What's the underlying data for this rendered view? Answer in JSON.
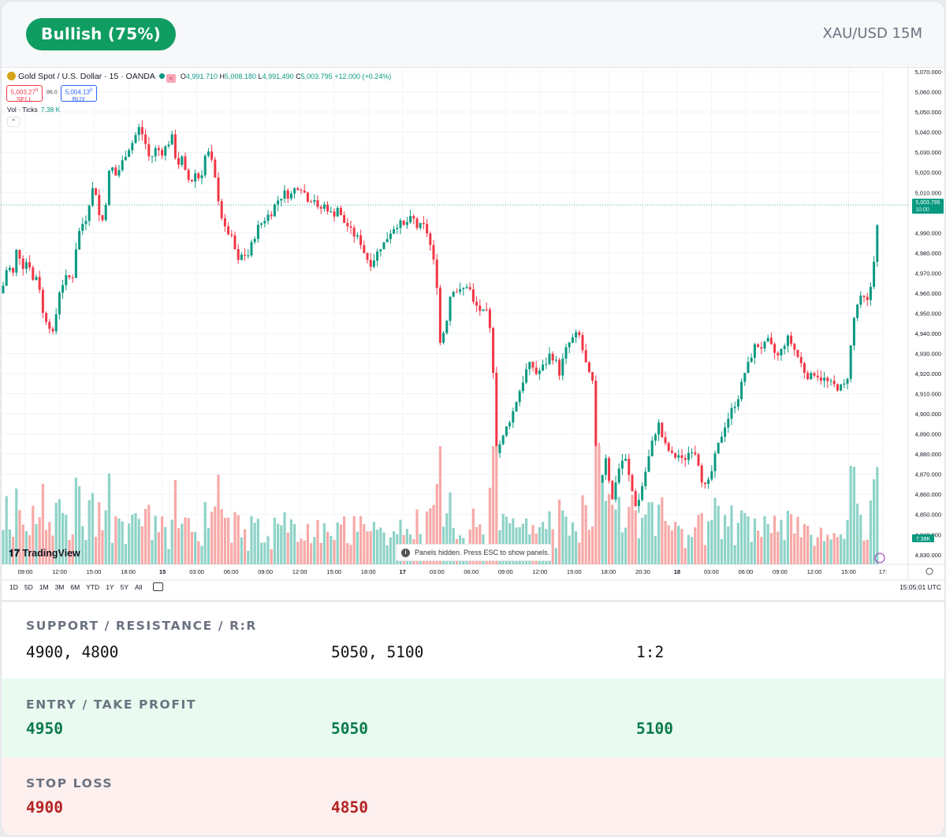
{
  "header": {
    "sentiment_badge": "Bullish (75%)",
    "pair_label": "XAU/USD 15M"
  },
  "chart": {
    "symbol_title": "Gold Spot / U.S. Dollar · 15 · OANDA",
    "ohlc": {
      "o": "4,991.710",
      "h": "5,008.180",
      "l": "4,991.490",
      "c": "5,003.795",
      "change": "+12.000 (+0.24%)"
    },
    "sell_price": "5,003.27",
    "sell_sup": "0",
    "sell_label": "SELL",
    "buy_price": "5,004.13",
    "buy_sup": "0",
    "buy_label": "BUY",
    "spread": "86.0",
    "volume_label": "Vol · Ticks",
    "volume_value": "7.38 K",
    "volume_badge": "7.38K",
    "price_badge": "5,003.795",
    "price_badge_time": "10:00",
    "brand": "TradingView",
    "panels_notice": "Panels hidden. Press ESC to show panels.",
    "timeframes": [
      "1D",
      "5D",
      "1M",
      "3M",
      "6M",
      "YTD",
      "1Y",
      "5Y",
      "All"
    ],
    "clock": "15:05:01 UTC",
    "colors": {
      "up": "#089981",
      "down": "#f23645",
      "up_vol": "#8fd3c8",
      "down_vol": "#f7a9a7"
    }
  },
  "chart_data": {
    "type": "candlestick",
    "title": "Gold Spot / U.S. Dollar · 15 · OANDA",
    "xlabel": "",
    "ylabel": "",
    "y_ticks": [
      5070,
      5060,
      5050,
      5040,
      5030,
      5020,
      5010,
      4990,
      4980,
      4970,
      4960,
      4950,
      4940,
      4930,
      4920,
      4910,
      4900,
      4890,
      4880,
      4870,
      4860,
      4850,
      4840,
      4830
    ],
    "y_tick_labels": [
      "5,070.000",
      "5,060.000",
      "5,050.000",
      "5,040.000",
      "5,030.000",
      "5,020.000",
      "5,010.000",
      "4,990.000",
      "4,980.000",
      "4,970.000",
      "4,960.000",
      "4,950.000",
      "4,940.000",
      "4,930.000",
      "4,920.000",
      "4,910.000",
      "4,900.000",
      "4,890.000",
      "4,880.000",
      "4,870.000",
      "4,860.000",
      "4,850.000",
      "4,840.000",
      "4,830.000"
    ],
    "ylim": [
      4826,
      5072
    ],
    "x_tick_labels": [
      "09:00",
      "12:00",
      "15:00",
      "18:00",
      "15",
      "03:00",
      "06:00",
      "09:00",
      "12:00",
      "15:00",
      "18:00",
      "17",
      "03:00",
      "06:00",
      "09:00",
      "12:00",
      "15:00",
      "18:00",
      "20:30",
      "18",
      "03:00",
      "06:00",
      "09:00",
      "12:00",
      "15:00",
      "17:"
    ],
    "bold_x_ticks": [
      "15",
      "17",
      "18"
    ],
    "price_path": [
      [
        0,
        4960
      ],
      [
        8,
        4975
      ],
      [
        14,
        4968
      ],
      [
        20,
        4984
      ],
      [
        26,
        4973
      ],
      [
        34,
        4977
      ],
      [
        40,
        4966
      ],
      [
        46,
        4970
      ],
      [
        52,
        4950
      ],
      [
        60,
        4945
      ],
      [
        66,
        4938
      ],
      [
        72,
        4960
      ],
      [
        80,
        4967
      ],
      [
        90,
        4968
      ],
      [
        96,
        4988
      ],
      [
        102,
        4994
      ],
      [
        108,
        4998
      ],
      [
        114,
        5012
      ],
      [
        120,
        5010
      ],
      [
        126,
        4992
      ],
      [
        132,
        5005
      ],
      [
        138,
        5025
      ],
      [
        144,
        5018
      ],
      [
        150,
        5022
      ],
      [
        158,
        5030
      ],
      [
        166,
        5035
      ],
      [
        174,
        5042
      ],
      [
        180,
        5038
      ],
      [
        188,
        5026
      ],
      [
        196,
        5032
      ],
      [
        204,
        5030
      ],
      [
        212,
        5035
      ],
      [
        218,
        5038
      ],
      [
        222,
        5022
      ],
      [
        228,
        5028
      ],
      [
        234,
        5018
      ],
      [
        240,
        5015
      ],
      [
        246,
        5020
      ],
      [
        252,
        5016
      ],
      [
        258,
        5028
      ],
      [
        264,
        5030
      ],
      [
        270,
        5018
      ],
      [
        276,
        5005
      ],
      [
        282,
        4992
      ],
      [
        288,
        4990
      ],
      [
        294,
        4985
      ],
      [
        300,
        4975
      ],
      [
        306,
        4980
      ],
      [
        312,
        4978
      ],
      [
        318,
        4985
      ],
      [
        324,
        4992
      ],
      [
        330,
        4995
      ],
      [
        336,
        4998
      ],
      [
        342,
        5000
      ],
      [
        348,
        5005
      ],
      [
        354,
        5008
      ],
      [
        360,
        5010
      ],
      [
        366,
        5008
      ],
      [
        372,
        5012
      ],
      [
        378,
        5014
      ],
      [
        384,
        5010
      ],
      [
        390,
        5006
      ],
      [
        396,
        5008
      ],
      [
        402,
        5000
      ],
      [
        408,
        5004
      ],
      [
        414,
        5002
      ],
      [
        420,
        4998
      ],
      [
        426,
        5003
      ],
      [
        432,
        4996
      ],
      [
        438,
        4994
      ],
      [
        444,
        4990
      ],
      [
        450,
        4988
      ],
      [
        456,
        4985
      ],
      [
        462,
        4978
      ],
      [
        468,
        4975
      ],
      [
        474,
        4978
      ],
      [
        480,
        4983
      ],
      [
        486,
        4985
      ],
      [
        492,
        4990
      ],
      [
        498,
        4993
      ],
      [
        504,
        4995
      ],
      [
        510,
        4993
      ],
      [
        516,
        4996
      ],
      [
        522,
        4997
      ],
      [
        528,
        4992
      ],
      [
        534,
        4994
      ],
      [
        540,
        4990
      ],
      [
        546,
        4980
      ],
      [
        552,
        4966
      ],
      [
        556,
        4935
      ],
      [
        560,
        4940
      ],
      [
        564,
        4945
      ],
      [
        568,
        4958
      ],
      [
        574,
        4963
      ],
      [
        580,
        4960
      ],
      [
        586,
        4962
      ],
      [
        592,
        4965
      ],
      [
        598,
        4955
      ],
      [
        604,
        4953
      ],
      [
        610,
        4950
      ],
      [
        616,
        4950
      ],
      [
        620,
        4940
      ],
      [
        624,
        4920
      ],
      [
        628,
        4880
      ],
      [
        632,
        4885
      ],
      [
        636,
        4888
      ],
      [
        642,
        4895
      ],
      [
        648,
        4900
      ],
      [
        654,
        4908
      ],
      [
        660,
        4915
      ],
      [
        666,
        4922
      ],
      [
        672,
        4925
      ],
      [
        678,
        4920
      ],
      [
        684,
        4922
      ],
      [
        690,
        4925
      ],
      [
        696,
        4930
      ],
      [
        702,
        4927
      ],
      [
        708,
        4920
      ],
      [
        714,
        4930
      ],
      [
        720,
        4935
      ],
      [
        726,
        4938
      ],
      [
        732,
        4940
      ],
      [
        738,
        4930
      ],
      [
        744,
        4920
      ],
      [
        750,
        4915
      ],
      [
        754,
        4880
      ],
      [
        758,
        4858
      ],
      [
        762,
        4870
      ],
      [
        766,
        4880
      ],
      [
        770,
        4870
      ],
      [
        774,
        4855
      ],
      [
        778,
        4865
      ],
      [
        782,
        4872
      ],
      [
        786,
        4875
      ],
      [
        790,
        4880
      ],
      [
        794,
        4872
      ],
      [
        798,
        4865
      ],
      [
        802,
        4858
      ],
      [
        806,
        4853
      ],
      [
        810,
        4860
      ],
      [
        816,
        4870
      ],
      [
        822,
        4880
      ],
      [
        828,
        4890
      ],
      [
        834,
        4895
      ],
      [
        840,
        4885
      ],
      [
        846,
        4882
      ],
      [
        852,
        4878
      ],
      [
        858,
        4880
      ],
      [
        864,
        4876
      ],
      [
        870,
        4880
      ],
      [
        876,
        4883
      ],
      [
        882,
        4880
      ],
      [
        888,
        4868
      ],
      [
        894,
        4862
      ],
      [
        900,
        4870
      ],
      [
        906,
        4880
      ],
      [
        912,
        4888
      ],
      [
        918,
        4895
      ],
      [
        924,
        4900
      ],
      [
        930,
        4905
      ],
      [
        936,
        4910
      ],
      [
        942,
        4920
      ],
      [
        948,
        4925
      ],
      [
        954,
        4933
      ],
      [
        960,
        4934
      ],
      [
        966,
        4933
      ],
      [
        972,
        4936
      ],
      [
        978,
        4932
      ],
      [
        984,
        4928
      ],
      [
        990,
        4932
      ],
      [
        996,
        4938
      ],
      [
        1002,
        4935
      ],
      [
        1008,
        4930
      ],
      [
        1014,
        4925
      ],
      [
        1020,
        4920
      ],
      [
        1026,
        4918
      ],
      [
        1032,
        4921
      ],
      [
        1038,
        4918
      ],
      [
        1044,
        4917
      ],
      [
        1050,
        4915
      ],
      [
        1056,
        4914
      ],
      [
        1062,
        4913
      ],
      [
        1068,
        4913
      ],
      [
        1074,
        4920
      ],
      [
        1080,
        4945
      ],
      [
        1086,
        4955
      ],
      [
        1092,
        4958
      ],
      [
        1098,
        4955
      ],
      [
        1102,
        4962
      ],
      [
        1106,
        4975
      ],
      [
        1110,
        4990
      ],
      [
        1114,
        5003.8
      ]
    ],
    "last_price": 5003.795
  },
  "panels": {
    "support_resistance": {
      "title": "SUPPORT / RESISTANCE / R:R",
      "support": "4900, 4800",
      "resistance": "5050, 5100",
      "rr": "1:2"
    },
    "entry_take_profit": {
      "title": "ENTRY / TAKE PROFIT",
      "entry": "4950",
      "tp1": "5050",
      "tp2": "5100"
    },
    "stop_loss": {
      "title": "STOP LOSS",
      "sl1": "4900",
      "sl2": "4850"
    }
  }
}
